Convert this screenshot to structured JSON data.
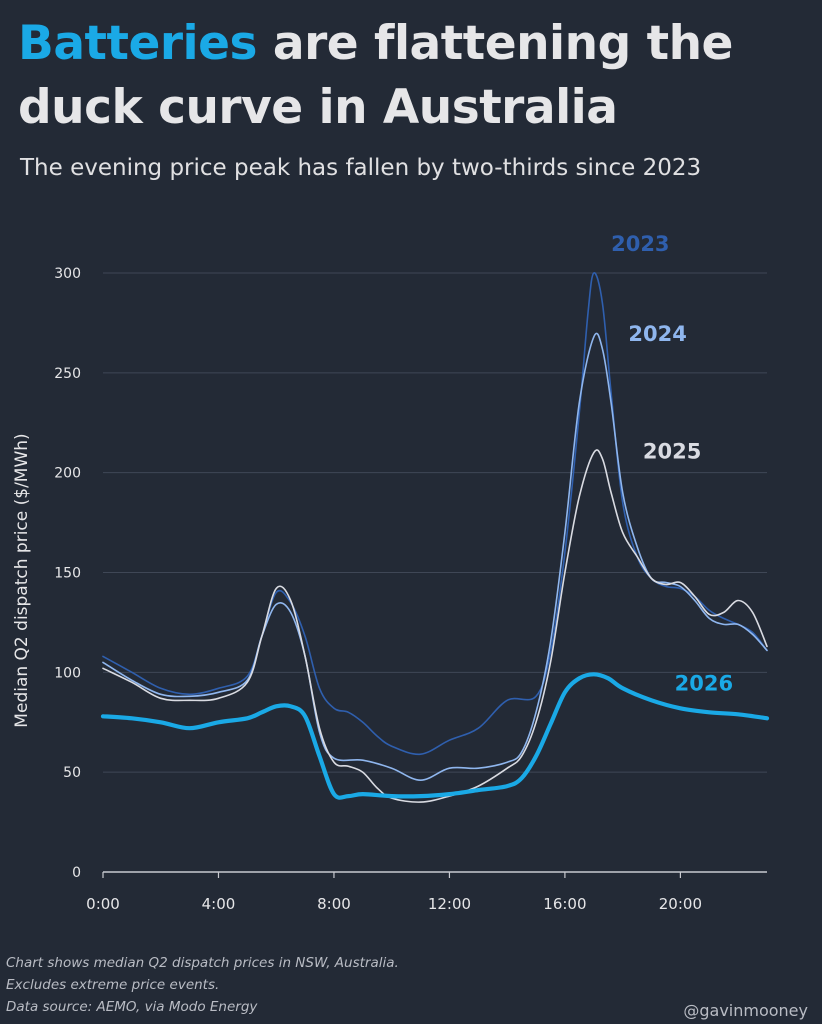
{
  "header": {
    "title_highlight": "Batteries",
    "title_rest": " are flattening the duck curve in Australia",
    "subtitle": "The evening price peak has fallen by two-thirds since 2023"
  },
  "footer": {
    "note_line1": "Chart shows median Q2 dispatch prices in NSW, Australia.",
    "note_line2": "Excludes extreme price events.",
    "note_line3": "Data source: AEMO, via Modo Energy",
    "handle": "@gavinmooney"
  },
  "colors": {
    "background": "#232a36",
    "grid": "#3f4756",
    "axis": "#c8cad0",
    "text": "#e6e6e8",
    "y2023": "#2f5fae",
    "y2024": "#8fb6ee",
    "y2025": "#d9dbe2",
    "y2026": "#1aa9e6"
  },
  "chart_data": {
    "type": "line",
    "title": "",
    "xlabel": "",
    "ylabel": "Median Q2 dispatch price ($/MWh)",
    "xlim": [
      0,
      23
    ],
    "ylim": [
      0,
      300
    ],
    "xticks": [
      0,
      4,
      8,
      12,
      16,
      20
    ],
    "xtick_labels": [
      "0:00",
      "4:00",
      "8:00",
      "12:00",
      "16:00",
      "20:00"
    ],
    "yticks": [
      0,
      50,
      100,
      150,
      200,
      250,
      300
    ],
    "grid": "horizontal",
    "series": [
      {
        "name": "2023",
        "color": "#2f5fae",
        "width": 1.6,
        "points": [
          [
            0,
            108
          ],
          [
            1,
            100
          ],
          [
            2,
            92
          ],
          [
            3,
            89
          ],
          [
            4,
            92
          ],
          [
            5,
            98
          ],
          [
            5.5,
            118
          ],
          [
            6,
            140
          ],
          [
            6.5,
            135
          ],
          [
            7,
            118
          ],
          [
            7.5,
            92
          ],
          [
            8,
            82
          ],
          [
            8.5,
            80
          ],
          [
            9,
            75
          ],
          [
            9.5,
            68
          ],
          [
            10,
            63
          ],
          [
            11,
            59
          ],
          [
            12,
            66
          ],
          [
            13,
            72
          ],
          [
            14,
            86
          ],
          [
            15,
            88
          ],
          [
            15.5,
            110
          ],
          [
            16,
            160
          ],
          [
            16.5,
            230
          ],
          [
            16.8,
            280
          ],
          [
            17,
            300
          ],
          [
            17.3,
            285
          ],
          [
            17.6,
            240
          ],
          [
            18,
            185
          ],
          [
            18.5,
            158
          ],
          [
            19,
            147
          ],
          [
            19.5,
            143
          ],
          [
            20,
            142
          ],
          [
            20.5,
            138
          ],
          [
            21,
            131
          ],
          [
            21.5,
            127
          ],
          [
            22,
            124
          ],
          [
            22.5,
            120
          ],
          [
            23,
            111
          ]
        ]
      },
      {
        "name": "2024",
        "color": "#8fb6ee",
        "width": 1.6,
        "points": [
          [
            0,
            105
          ],
          [
            1,
            96
          ],
          [
            2,
            89
          ],
          [
            3,
            88
          ],
          [
            4,
            90
          ],
          [
            5,
            96
          ],
          [
            5.5,
            118
          ],
          [
            6,
            134
          ],
          [
            6.5,
            130
          ],
          [
            7,
            108
          ],
          [
            7.5,
            70
          ],
          [
            8,
            57
          ],
          [
            9,
            56
          ],
          [
            10,
            52
          ],
          [
            11,
            46
          ],
          [
            12,
            52
          ],
          [
            13,
            52
          ],
          [
            14,
            55
          ],
          [
            14.5,
            60
          ],
          [
            15,
            80
          ],
          [
            15.5,
            115
          ],
          [
            16,
            170
          ],
          [
            16.5,
            235
          ],
          [
            17,
            268
          ],
          [
            17.3,
            262
          ],
          [
            17.6,
            235
          ],
          [
            18,
            190
          ],
          [
            18.5,
            163
          ],
          [
            19,
            147
          ],
          [
            19.5,
            145
          ],
          [
            20,
            143
          ],
          [
            20.5,
            136
          ],
          [
            21,
            127
          ],
          [
            21.5,
            124
          ],
          [
            22,
            124
          ],
          [
            22.5,
            119
          ],
          [
            23,
            111
          ]
        ]
      },
      {
        "name": "2025",
        "color": "#d9dbe2",
        "width": 1.6,
        "points": [
          [
            0,
            102
          ],
          [
            1,
            95
          ],
          [
            2,
            87
          ],
          [
            3,
            86
          ],
          [
            4,
            87
          ],
          [
            5,
            95
          ],
          [
            5.5,
            118
          ],
          [
            6,
            142
          ],
          [
            6.5,
            136
          ],
          [
            7,
            108
          ],
          [
            7.5,
            72
          ],
          [
            8,
            55
          ],
          [
            8.5,
            53
          ],
          [
            9,
            50
          ],
          [
            9.5,
            42
          ],
          [
            10,
            37
          ],
          [
            11,
            35
          ],
          [
            12,
            38
          ],
          [
            13,
            43
          ],
          [
            14,
            52
          ],
          [
            14.5,
            58
          ],
          [
            15,
            75
          ],
          [
            15.5,
            105
          ],
          [
            16,
            150
          ],
          [
            16.5,
            188
          ],
          [
            17,
            210
          ],
          [
            17.3,
            207
          ],
          [
            17.6,
            190
          ],
          [
            18,
            170
          ],
          [
            18.5,
            158
          ],
          [
            19,
            147
          ],
          [
            19.5,
            144
          ],
          [
            20,
            145
          ],
          [
            20.5,
            138
          ],
          [
            21,
            129
          ],
          [
            21.5,
            130
          ],
          [
            22,
            136
          ],
          [
            22.5,
            130
          ],
          [
            23,
            113
          ]
        ]
      },
      {
        "name": "2026",
        "color": "#1aa9e6",
        "width": 4.2,
        "points": [
          [
            0,
            78
          ],
          [
            1,
            77
          ],
          [
            2,
            75
          ],
          [
            3,
            72
          ],
          [
            4,
            75
          ],
          [
            5,
            77
          ],
          [
            5.5,
            80
          ],
          [
            6,
            83
          ],
          [
            6.5,
            83
          ],
          [
            7,
            78
          ],
          [
            7.5,
            58
          ],
          [
            8,
            39
          ],
          [
            8.5,
            38
          ],
          [
            9,
            39
          ],
          [
            10,
            38
          ],
          [
            11,
            38
          ],
          [
            12,
            39
          ],
          [
            13,
            41
          ],
          [
            14,
            43
          ],
          [
            14.5,
            47
          ],
          [
            15,
            58
          ],
          [
            15.5,
            74
          ],
          [
            16,
            90
          ],
          [
            16.5,
            97
          ],
          [
            17,
            99
          ],
          [
            17.5,
            97
          ],
          [
            18,
            92
          ],
          [
            19,
            86
          ],
          [
            20,
            82
          ],
          [
            21,
            80
          ],
          [
            22,
            79
          ],
          [
            23,
            77
          ]
        ]
      }
    ],
    "annotations": [
      {
        "text": "2023",
        "x": 17.6,
        "y": 311,
        "color": "#2f5fae"
      },
      {
        "text": "2024",
        "x": 18.2,
        "y": 266,
        "color": "#8fb6ee"
      },
      {
        "text": "2025",
        "x": 18.7,
        "y": 207,
        "color": "#d9dbe2"
      },
      {
        "text": "2026",
        "x": 19.8,
        "y": 91,
        "color": "#1aa9e6"
      }
    ]
  }
}
